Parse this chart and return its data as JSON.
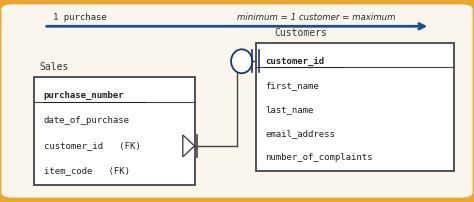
{
  "bg_color": "#e8a830",
  "inner_bg": "#faf6ee",
  "box_edge": "#444444",
  "arrow_color": "#1a4f8a",
  "sales_label": "Sales",
  "sales_fields": [
    "purchase_number",
    "date_of_purchase",
    "customer_id   (FK)",
    "item_code   (FK)"
  ],
  "sales_pk": "purchase_number",
  "customers_label": "Customers",
  "customers_fields": [
    "customer_id",
    "first_name",
    "last_name",
    "email_address",
    "number_of_complaints"
  ],
  "customers_pk": "customer_id",
  "top_left_text": "1 purchase",
  "top_right_text": "minimum = 1 customer = maximum",
  "connector_color": "#444444",
  "ellipse_color": "#1a3a6b"
}
